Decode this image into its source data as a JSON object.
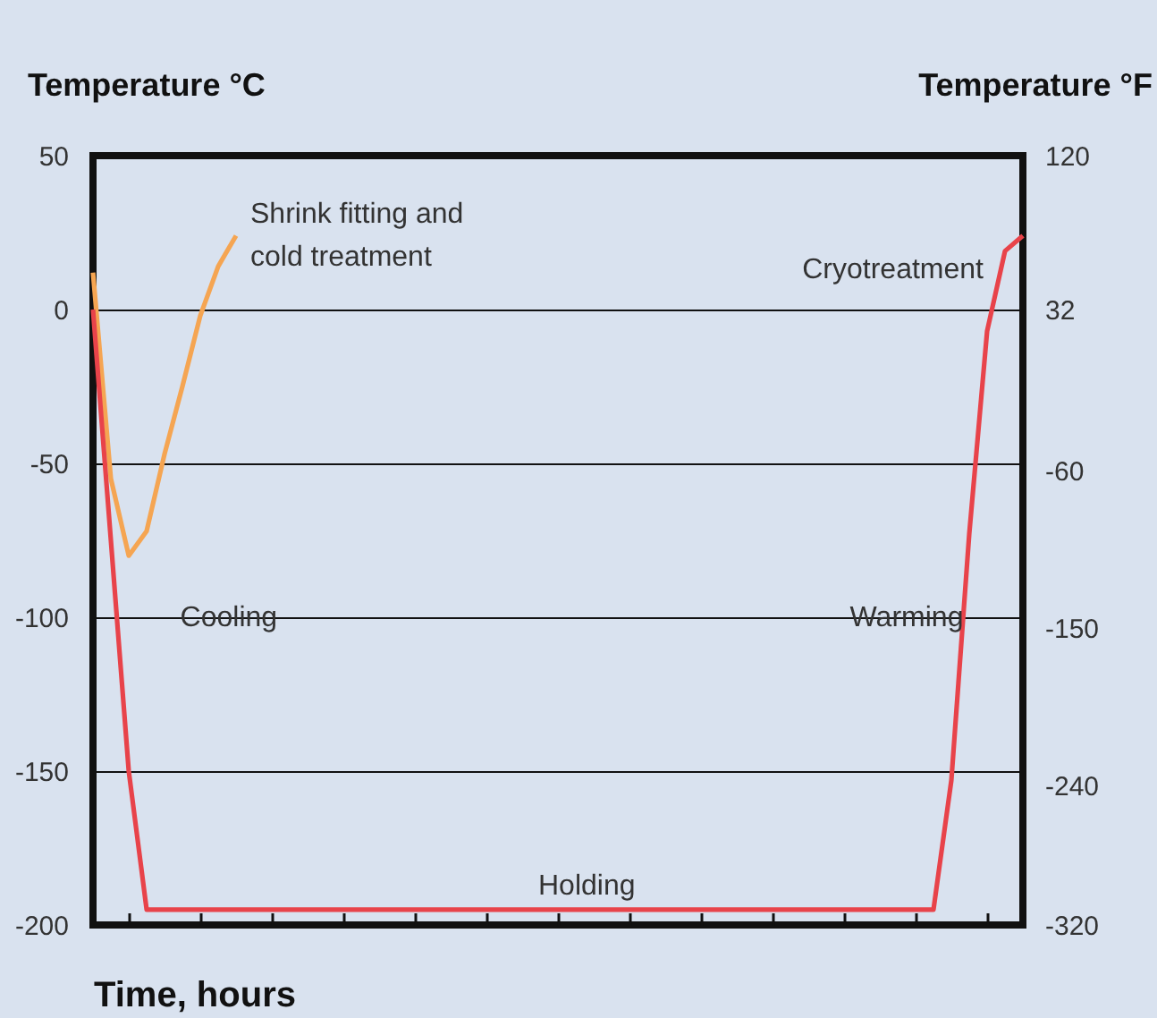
{
  "chart_data": {
    "type": "line",
    "xlabel": "Time, hours",
    "ylabel": "Temperature   °C",
    "y2label": "Temperature °F",
    "categories": [
      null,
      null,
      null,
      null,
      null,
      null,
      null,
      null,
      null,
      null,
      null,
      null,
      null,
      null,
      null,
      null,
      null,
      null,
      null,
      null,
      null,
      null,
      null,
      null,
      null,
      null,
      null,
      null,
      null,
      null,
      null,
      null,
      null,
      null,
      null,
      null,
      null,
      null,
      null,
      null,
      null,
      null,
      null,
      null,
      null,
      null,
      null,
      null,
      null,
      null,
      null,
      null,
      null
    ],
    "ylim": [
      -200,
      50
    ],
    "yticks": [
      -200,
      -150,
      -100,
      -50,
      0,
      50
    ],
    "y2lim": [
      -320,
      120
    ],
    "y2ticks": [
      -320,
      -240,
      -150,
      -60,
      32,
      120
    ],
    "tick_labels": "y",
    "grid": "y",
    "legend": false,
    "marker": "none",
    "line_style": "solid",
    "series": [
      {
        "name": "Shrink fitting and\ncold treatment",
        "color": "#f5a552",
        "values": [
          12,
          -55,
          -80,
          -72,
          -47,
          -25,
          -2,
          14,
          24,
          null,
          null,
          null,
          null,
          null,
          null,
          null,
          null,
          null,
          null,
          null,
          null,
          null,
          null,
          null,
          null,
          null,
          null,
          null,
          null,
          null,
          null,
          null,
          null,
          null,
          null,
          null,
          null,
          null,
          null,
          null,
          null,
          null,
          null,
          null,
          null,
          null,
          null,
          null,
          null,
          null,
          null,
          null,
          null
        ]
      },
      {
        "name": "Cryotreatment",
        "color": "#e8434a",
        "values": [
          0,
          -75,
          -150,
          -195,
          -195,
          -195,
          -195,
          -195,
          -195,
          -195,
          -195,
          -195,
          -195,
          -195,
          -195,
          -195,
          -195,
          -195,
          -195,
          -195,
          -195,
          -195,
          -195,
          -195,
          -195,
          -195,
          -195,
          -195,
          -195,
          -195,
          -195,
          -195,
          -195,
          -195,
          -195,
          -195,
          -195,
          -195,
          -195,
          -195,
          -195,
          -195,
          -195,
          -195,
          -195,
          -195,
          -195,
          -195,
          -153,
          -73,
          -7,
          19,
          24
        ]
      }
    ],
    "annotations": [
      "Cooling",
      "Holding",
      "Warming"
    ]
  }
}
